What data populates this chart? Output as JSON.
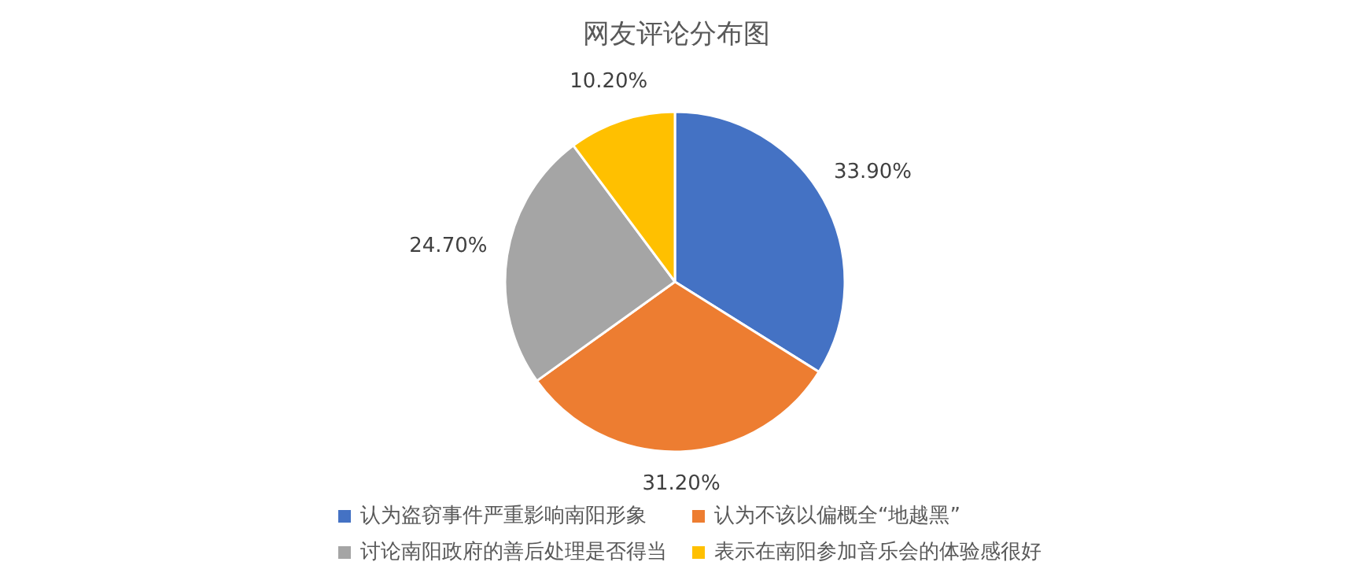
{
  "chart_data": {
    "type": "pie",
    "title": "网友评论分布图",
    "categories": [
      "认为盗窃事件严重影响南阳形象",
      "认为不该以偏概全“地越黑”",
      "讨论南阳政府的善后处理是否得当",
      "表示在南阳参加音乐会的体验感很好"
    ],
    "values": [
      33.9,
      31.2,
      24.7,
      10.2
    ],
    "value_labels": [
      "33.90%",
      "31.20%",
      "24.70%",
      "10.20%"
    ],
    "colors": [
      "#4472c4",
      "#ed7d31",
      "#a5a5a5",
      "#ffc000"
    ],
    "legend": "bottom"
  }
}
